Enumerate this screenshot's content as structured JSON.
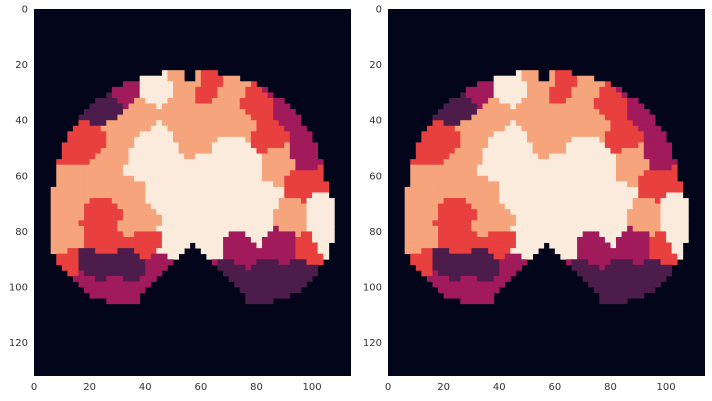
{
  "chart_data": [
    {
      "type": "heatmap",
      "title": "",
      "xlabel": "",
      "ylabel": "",
      "xlim": [
        0,
        114
      ],
      "ylim": [
        132,
        0
      ],
      "xticks": [
        "0",
        "20",
        "40",
        "60",
        "80",
        "100"
      ],
      "yticks": [
        "0",
        "20",
        "40",
        "60",
        "80",
        "100",
        "120"
      ],
      "grid": false,
      "legend": "none"
    },
    {
      "type": "heatmap",
      "title": "",
      "xlabel": "",
      "ylabel": "",
      "xlim": [
        0,
        114
      ],
      "ylim": [
        132,
        0
      ],
      "xticks": [
        "0",
        "20",
        "40",
        "60",
        "80",
        "100"
      ],
      "yticks": [
        "0",
        "20",
        "40",
        "60",
        "80",
        "100",
        "120"
      ],
      "grid": false,
      "legend": "none"
    }
  ],
  "colors": {
    "background": "#03051a",
    "colormap": [
      "#03051a",
      "#4c1d4b",
      "#a11a5b",
      "#e83f3f",
      "#f6a47c",
      "#faebdd"
    ]
  }
}
